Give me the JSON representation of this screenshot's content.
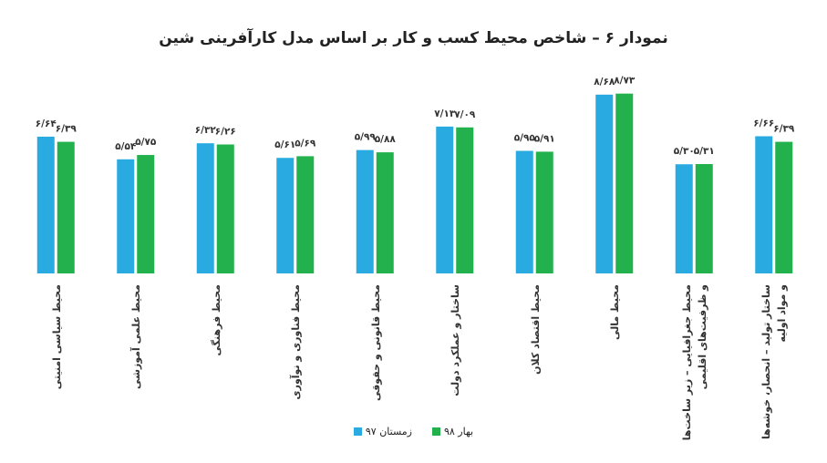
{
  "chart_data": {
    "type": "bar",
    "title": "نمودار ۶ – شاخص محیط کسب و کار بر اساس مدل کارآفرینی شین",
    "categories": [
      "محیط سیاسی امنیتی",
      "محیط علمی آموزشی",
      "محیط فرهنگی",
      "محیط فناوری و نوآوری",
      "محیط قانونی و حقوقی",
      "ساختار و عملکرد دولت",
      "محیط اقتصاد کلان",
      "محیط مالی",
      "محیط جغرافیایی – زیر ساخت‌ها و ظرفیت‌های اقلیمی",
      "ساختار تولید – انحصار، خوشه‌ها و مواد اولیه"
    ],
    "series": [
      {
        "name": "زمستان ۹۷",
        "color": "#29abe2",
        "values": [
          6.64,
          5.54,
          6.32,
          5.61,
          5.99,
          7.13,
          5.95,
          8.68,
          5.3,
          6.66
        ],
        "value_labels": [
          "۶/۶۴",
          "۵/۵۴",
          "۶/۳۲",
          "۵/۶۱",
          "۵/۹۹",
          "۷/۱۳",
          "۵/۹۵",
          "۸/۶۸",
          "۵/۳۰",
          "۶/۶۶"
        ]
      },
      {
        "name": "بهار ۹۸",
        "color": "#22b14c",
        "values": [
          6.39,
          5.75,
          6.26,
          5.69,
          5.88,
          7.09,
          5.91,
          8.73,
          5.31,
          6.39
        ],
        "value_labels": [
          "۶/۳۹",
          "۵/۷۵",
          "۶/۲۶",
          "۵/۶۹",
          "۵/۸۸",
          "۷/۰۹",
          "۵/۹۱",
          "۸/۷۳",
          "۵/۳۱",
          "۶/۳۹"
        ]
      }
    ],
    "ylim": [
      0,
      10
    ]
  }
}
